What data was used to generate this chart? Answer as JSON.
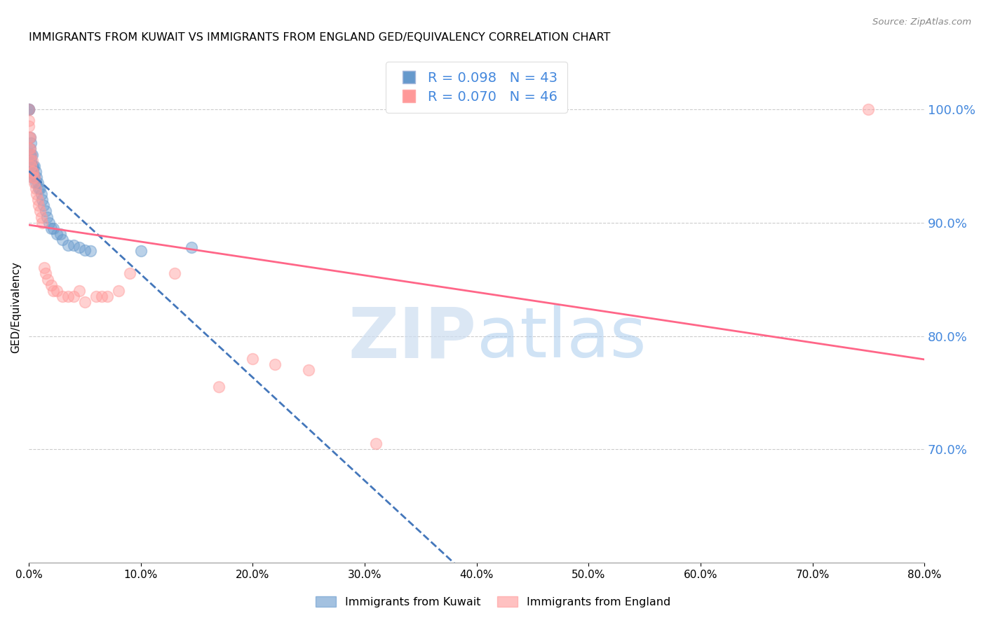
{
  "title": "IMMIGRANTS FROM KUWAIT VS IMMIGRANTS FROM ENGLAND GED/EQUIVALENCY CORRELATION CHART",
  "source": "Source: ZipAtlas.com",
  "ylabel": "GED/Equivalency",
  "xlim": [
    0.0,
    0.8
  ],
  "ylim": [
    0.6,
    1.05
  ],
  "x_ticks": [
    0.0,
    0.1,
    0.2,
    0.3,
    0.4,
    0.5,
    0.6,
    0.7,
    0.8
  ],
  "y_ticks_right": [
    0.7,
    0.8,
    0.9,
    1.0
  ],
  "kuwait_R": 0.098,
  "kuwait_N": 43,
  "england_R": 0.07,
  "england_N": 46,
  "kuwait_color": "#6699CC",
  "england_color": "#FF9999",
  "kuwait_line_color": "#4477BB",
  "england_line_color": "#FF6688",
  "kuwait_x": [
    0.0,
    0.0,
    0.0,
    0.001,
    0.001,
    0.001,
    0.001,
    0.001,
    0.002,
    0.002,
    0.002,
    0.002,
    0.003,
    0.003,
    0.003,
    0.004,
    0.004,
    0.005,
    0.005,
    0.006,
    0.006,
    0.007,
    0.008,
    0.009,
    0.01,
    0.011,
    0.012,
    0.013,
    0.015,
    0.016,
    0.018,
    0.02,
    0.022,
    0.025,
    0.028,
    0.03,
    0.035,
    0.04,
    0.045,
    0.05,
    0.055,
    0.1,
    0.145
  ],
  "kuwait_y": [
    1.0,
    1.0,
    1.0,
    0.975,
    0.965,
    0.96,
    0.955,
    0.95,
    0.97,
    0.96,
    0.955,
    0.945,
    0.96,
    0.95,
    0.94,
    0.95,
    0.945,
    0.95,
    0.94,
    0.945,
    0.935,
    0.94,
    0.935,
    0.93,
    0.93,
    0.925,
    0.92,
    0.915,
    0.91,
    0.905,
    0.9,
    0.895,
    0.895,
    0.89,
    0.89,
    0.885,
    0.88,
    0.88,
    0.878,
    0.876,
    0.875,
    0.875,
    0.878
  ],
  "england_x": [
    0.0,
    0.0,
    0.0,
    0.0,
    0.0,
    0.001,
    0.001,
    0.001,
    0.002,
    0.002,
    0.003,
    0.003,
    0.004,
    0.004,
    0.005,
    0.005,
    0.006,
    0.007,
    0.008,
    0.009,
    0.01,
    0.011,
    0.012,
    0.014,
    0.015,
    0.017,
    0.02,
    0.022,
    0.025,
    0.03,
    0.035,
    0.04,
    0.045,
    0.05,
    0.06,
    0.065,
    0.07,
    0.08,
    0.09,
    0.13,
    0.17,
    0.2,
    0.22,
    0.25,
    0.31,
    0.75
  ],
  "england_y": [
    1.0,
    0.99,
    0.985,
    0.975,
    0.965,
    0.975,
    0.965,
    0.955,
    0.96,
    0.95,
    0.955,
    0.945,
    0.945,
    0.94,
    0.94,
    0.935,
    0.93,
    0.925,
    0.92,
    0.915,
    0.91,
    0.905,
    0.9,
    0.86,
    0.855,
    0.85,
    0.845,
    0.84,
    0.84,
    0.835,
    0.835,
    0.835,
    0.84,
    0.83,
    0.835,
    0.835,
    0.835,
    0.84,
    0.855,
    0.855,
    0.755,
    0.78,
    0.775,
    0.77,
    0.705,
    1.0
  ]
}
